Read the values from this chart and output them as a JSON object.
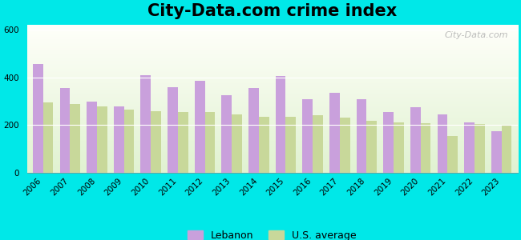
{
  "title": "City-Data.com crime index",
  "years": [
    2006,
    2007,
    2008,
    2009,
    2010,
    2011,
    2012,
    2013,
    2014,
    2015,
    2016,
    2017,
    2018,
    2019,
    2020,
    2021,
    2022,
    2023
  ],
  "lebanon": [
    455,
    355,
    300,
    280,
    410,
    360,
    385,
    325,
    355,
    405,
    310,
    335,
    310,
    255,
    275,
    245,
    210,
    175
  ],
  "us_avg": [
    295,
    290,
    280,
    265,
    260,
    255,
    255,
    245,
    235,
    235,
    240,
    230,
    218,
    210,
    208,
    155,
    205,
    198
  ],
  "lebanon_color": "#c9a0dc",
  "us_avg_color": "#c8d89a",
  "outer_bg": "#00e8e8",
  "ylim": [
    0,
    620
  ],
  "yticks": [
    0,
    200,
    400,
    600
  ],
  "bar_width": 0.38,
  "legend_lebanon": "Lebanon",
  "legend_us": "U.S. average",
  "watermark": "City-Data.com",
  "title_fontsize": 15,
  "tick_fontsize": 7.5
}
